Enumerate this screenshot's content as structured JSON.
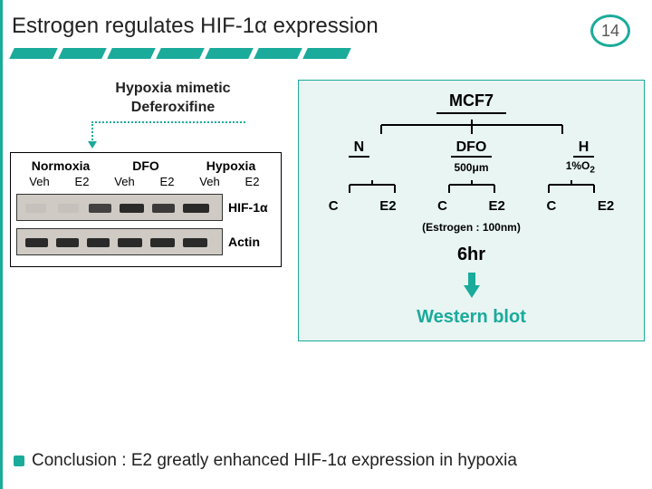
{
  "title": "Estrogen regulates HIF-1α expression",
  "page_number": "14",
  "dash_color": "#1aab9b",
  "dash_count": 7,
  "callout": {
    "line1": "Hypoxia mimetic",
    "line2": "Deferoxifine"
  },
  "blot": {
    "conditions": [
      "Normoxia",
      "DFO",
      "Hypoxia"
    ],
    "lanes": [
      "Veh",
      "E2",
      "Veh",
      "E2",
      "Veh",
      "E2"
    ],
    "rows": [
      {
        "label": "HIF-1α",
        "bands": [
          {
            "left_pct": 4,
            "width_pct": 10,
            "opacity": 0.05
          },
          {
            "left_pct": 20,
            "width_pct": 10,
            "opacity": 0.05
          },
          {
            "left_pct": 35,
            "width_pct": 11,
            "opacity": 0.85
          },
          {
            "left_pct": 50,
            "width_pct": 12,
            "opacity": 1.0
          },
          {
            "left_pct": 66,
            "width_pct": 11,
            "opacity": 0.9
          },
          {
            "left_pct": 81,
            "width_pct": 13,
            "opacity": 1.0
          }
        ]
      },
      {
        "label": "Actin",
        "bands": [
          {
            "left_pct": 4,
            "width_pct": 11,
            "opacity": 1.0
          },
          {
            "left_pct": 19,
            "width_pct": 11,
            "opacity": 1.0
          },
          {
            "left_pct": 34,
            "width_pct": 11,
            "opacity": 1.0
          },
          {
            "left_pct": 49,
            "width_pct": 12,
            "opacity": 1.0
          },
          {
            "left_pct": 65,
            "width_pct": 12,
            "opacity": 1.0
          },
          {
            "left_pct": 81,
            "width_pct": 12,
            "opacity": 1.0
          }
        ]
      }
    ]
  },
  "diagram": {
    "root": "MCF7",
    "tier1": [
      "N",
      "DFO",
      "H"
    ],
    "tier1_sub": [
      "",
      "500μm",
      "1%O"
    ],
    "tier1_sub_suffix": [
      "",
      "",
      "2"
    ],
    "tier2": [
      "C",
      "E2",
      "C",
      "E2",
      "C",
      "E2"
    ],
    "note": "(Estrogen : 100nm)",
    "duration": "6hr",
    "output": "Western blot"
  },
  "conclusion": "Conclusion : E2 greatly enhanced HIF-1α expression in hypoxia",
  "colors": {
    "accent": "#1aab9b",
    "panel_bg": "#e9f5f3",
    "gel_bg": "#cfcac4",
    "band": "#2a2a2a"
  }
}
